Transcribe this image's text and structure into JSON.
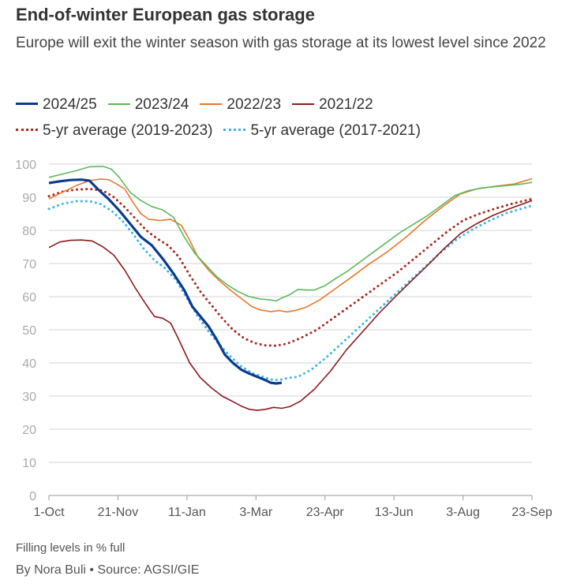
{
  "header": {
    "title": "End-of-winter European gas storage",
    "subtitle": "Europe will exit the winter season with gas storage at its lowest level since 2022"
  },
  "footer": {
    "note": "Filling levels in % full",
    "source": "By Nora Buli • Source: AGSI/GIE"
  },
  "chart_data": {
    "type": "line",
    "title": "End-of-winter European gas storage",
    "subtitle": "Europe will exit the winter season with gas storage at its lowest level since 2022",
    "ylabel": "",
    "xlabel": "",
    "ylim": [
      0,
      100
    ],
    "yticks": [
      0,
      10,
      20,
      30,
      40,
      50,
      60,
      70,
      80,
      90,
      100
    ],
    "xlim": [
      0,
      357
    ],
    "x_unit": "days since 1-Oct",
    "xticks": [
      {
        "day": 0,
        "label": "1-Oct"
      },
      {
        "day": 51,
        "label": "21-Nov"
      },
      {
        "day": 102,
        "label": "11-Jan"
      },
      {
        "day": 153,
        "label": "3-Mar"
      },
      {
        "day": 204,
        "label": "23-Apr"
      },
      {
        "day": 255,
        "label": "13-Jun"
      },
      {
        "day": 306,
        "label": "3-Aug"
      },
      {
        "day": 357,
        "label": "23-Sep"
      }
    ],
    "grid": "horizontal",
    "legend_position": "top",
    "series": [
      {
        "name": "2024/25",
        "color": "#0b3b8c",
        "style": "solid-thick",
        "points": [
          [
            0,
            94.3
          ],
          [
            8,
            94.8
          ],
          [
            16,
            95.2
          ],
          [
            24,
            95.3
          ],
          [
            30,
            95
          ],
          [
            36,
            92.5
          ],
          [
            44,
            89.5
          ],
          [
            52,
            86
          ],
          [
            60,
            82
          ],
          [
            68,
            78
          ],
          [
            76,
            75.5
          ],
          [
            84,
            71.5
          ],
          [
            92,
            67
          ],
          [
            100,
            62
          ],
          [
            106,
            57
          ],
          [
            112,
            54
          ],
          [
            118,
            51
          ],
          [
            124,
            47
          ],
          [
            130,
            42.5
          ],
          [
            136,
            40
          ],
          [
            142,
            38
          ],
          [
            148,
            36.8
          ],
          [
            154,
            35.8
          ],
          [
            160,
            34.8
          ],
          [
            164,
            34
          ],
          [
            168,
            33.8
          ],
          [
            172,
            34
          ]
        ]
      },
      {
        "name": "2023/24",
        "color": "#5cb85c",
        "style": "solid",
        "points": [
          [
            0,
            96
          ],
          [
            10,
            97
          ],
          [
            20,
            98
          ],
          [
            30,
            99.2
          ],
          [
            40,
            99.3
          ],
          [
            46,
            98.5
          ],
          [
            52,
            96
          ],
          [
            60,
            91.5
          ],
          [
            68,
            89
          ],
          [
            76,
            87.2
          ],
          [
            84,
            86.2
          ],
          [
            92,
            84
          ],
          [
            100,
            78
          ],
          [
            108,
            73
          ],
          [
            116,
            69.5
          ],
          [
            124,
            66
          ],
          [
            132,
            63.5
          ],
          [
            140,
            61.5
          ],
          [
            148,
            60
          ],
          [
            156,
            59.3
          ],
          [
            164,
            59
          ],
          [
            168,
            58.7
          ],
          [
            172,
            59.6
          ],
          [
            178,
            60.6
          ],
          [
            184,
            62.2
          ],
          [
            190,
            62
          ],
          [
            196,
            62
          ],
          [
            204,
            63.3
          ],
          [
            212,
            65.5
          ],
          [
            220,
            67.5
          ],
          [
            230,
            70.5
          ],
          [
            240,
            73.5
          ],
          [
            250,
            76.5
          ],
          [
            260,
            79.5
          ],
          [
            270,
            82
          ],
          [
            280,
            84.5
          ],
          [
            290,
            87.5
          ],
          [
            300,
            90.5
          ],
          [
            310,
            92
          ],
          [
            320,
            92.8
          ],
          [
            330,
            93.2
          ],
          [
            340,
            93.6
          ],
          [
            350,
            94
          ],
          [
            357,
            94.5
          ]
        ]
      },
      {
        "name": "2022/23",
        "color": "#e8782a",
        "style": "solid",
        "points": [
          [
            0,
            89.5
          ],
          [
            10,
            91.5
          ],
          [
            20,
            93.5
          ],
          [
            30,
            95
          ],
          [
            38,
            95.5
          ],
          [
            44,
            95.3
          ],
          [
            50,
            94
          ],
          [
            56,
            92.5
          ],
          [
            62,
            88.5
          ],
          [
            68,
            85
          ],
          [
            74,
            83.3
          ],
          [
            82,
            83
          ],
          [
            90,
            83.3
          ],
          [
            98,
            81.5
          ],
          [
            104,
            77
          ],
          [
            110,
            72
          ],
          [
            118,
            68
          ],
          [
            126,
            64.8
          ],
          [
            134,
            62
          ],
          [
            142,
            59.5
          ],
          [
            150,
            57
          ],
          [
            156,
            56
          ],
          [
            164,
            55.5
          ],
          [
            170,
            55.8
          ],
          [
            176,
            55.4
          ],
          [
            182,
            55.8
          ],
          [
            190,
            56.8
          ],
          [
            200,
            59
          ],
          [
            212,
            62.5
          ],
          [
            224,
            66
          ],
          [
            236,
            69.7
          ],
          [
            250,
            73.5
          ],
          [
            264,
            78
          ],
          [
            278,
            83
          ],
          [
            292,
            87.5
          ],
          [
            304,
            91
          ],
          [
            316,
            92.5
          ],
          [
            330,
            93.3
          ],
          [
            344,
            94
          ],
          [
            357,
            95.6
          ]
        ]
      },
      {
        "name": "2021/22",
        "color": "#8b1a1a",
        "style": "solid",
        "points": [
          [
            0,
            74.8
          ],
          [
            8,
            76.5
          ],
          [
            16,
            77
          ],
          [
            24,
            77.1
          ],
          [
            32,
            76.8
          ],
          [
            40,
            75
          ],
          [
            48,
            72.5
          ],
          [
            56,
            68
          ],
          [
            64,
            62.5
          ],
          [
            72,
            57.5
          ],
          [
            78,
            54
          ],
          [
            84,
            53.5
          ],
          [
            90,
            52
          ],
          [
            96,
            47
          ],
          [
            104,
            40
          ],
          [
            112,
            35.5
          ],
          [
            120,
            32.5
          ],
          [
            128,
            30
          ],
          [
            136,
            28.3
          ],
          [
            142,
            27
          ],
          [
            148,
            26
          ],
          [
            154,
            25.7
          ],
          [
            160,
            26
          ],
          [
            166,
            26.6
          ],
          [
            172,
            26.3
          ],
          [
            178,
            26.8
          ],
          [
            186,
            28.5
          ],
          [
            196,
            32
          ],
          [
            208,
            37.5
          ],
          [
            220,
            44
          ],
          [
            232,
            49.5
          ],
          [
            244,
            55
          ],
          [
            256,
            60
          ],
          [
            268,
            64.8
          ],
          [
            280,
            69.5
          ],
          [
            292,
            74.5
          ],
          [
            304,
            79
          ],
          [
            316,
            82
          ],
          [
            328,
            84.5
          ],
          [
            340,
            86.5
          ],
          [
            357,
            89
          ]
        ]
      },
      {
        "name": "5-yr average (2019-2023)",
        "color": "#a52a1a",
        "style": "dotted-thick",
        "points": [
          [
            0,
            90.3
          ],
          [
            10,
            91.7
          ],
          [
            20,
            92.3
          ],
          [
            30,
            92.5
          ],
          [
            40,
            92
          ],
          [
            48,
            90
          ],
          [
            56,
            87
          ],
          [
            64,
            83.5
          ],
          [
            72,
            80
          ],
          [
            80,
            77.5
          ],
          [
            88,
            75.5
          ],
          [
            96,
            72
          ],
          [
            104,
            66.5
          ],
          [
            112,
            61.5
          ],
          [
            120,
            57.5
          ],
          [
            128,
            53.5
          ],
          [
            136,
            50
          ],
          [
            144,
            47.5
          ],
          [
            152,
            46
          ],
          [
            160,
            45.3
          ],
          [
            168,
            45.2
          ],
          [
            176,
            45.8
          ],
          [
            186,
            47.5
          ],
          [
            198,
            50
          ],
          [
            210,
            53.5
          ],
          [
            222,
            57
          ],
          [
            234,
            60.5
          ],
          [
            246,
            64
          ],
          [
            258,
            67.5
          ],
          [
            270,
            71.5
          ],
          [
            282,
            75.5
          ],
          [
            294,
            79.5
          ],
          [
            306,
            83
          ],
          [
            318,
            85
          ],
          [
            330,
            86.6
          ],
          [
            342,
            88
          ],
          [
            357,
            89.5
          ]
        ]
      },
      {
        "name": "5-yr average (2017-2021)",
        "color": "#3db6e6",
        "style": "dotted-thick",
        "points": [
          [
            0,
            86.5
          ],
          [
            10,
            88
          ],
          [
            20,
            88.8
          ],
          [
            30,
            88.8
          ],
          [
            38,
            88
          ],
          [
            46,
            86
          ],
          [
            54,
            83
          ],
          [
            62,
            79
          ],
          [
            70,
            74.5
          ],
          [
            78,
            71
          ],
          [
            86,
            68.5
          ],
          [
            94,
            65
          ],
          [
            102,
            59.5
          ],
          [
            110,
            54
          ],
          [
            118,
            49.5
          ],
          [
            126,
            45.5
          ],
          [
            134,
            42
          ],
          [
            142,
            39
          ],
          [
            150,
            37
          ],
          [
            158,
            35.8
          ],
          [
            164,
            35
          ],
          [
            170,
            34.8
          ],
          [
            176,
            35.4
          ],
          [
            184,
            35.8
          ],
          [
            194,
            38
          ],
          [
            206,
            42
          ],
          [
            218,
            46.5
          ],
          [
            230,
            51
          ],
          [
            242,
            55.5
          ],
          [
            254,
            60
          ],
          [
            266,
            64.5
          ],
          [
            278,
            69
          ],
          [
            290,
            73.5
          ],
          [
            302,
            77.5
          ],
          [
            314,
            80.5
          ],
          [
            326,
            83
          ],
          [
            338,
            85.2
          ],
          [
            357,
            87.5
          ]
        ]
      }
    ]
  }
}
